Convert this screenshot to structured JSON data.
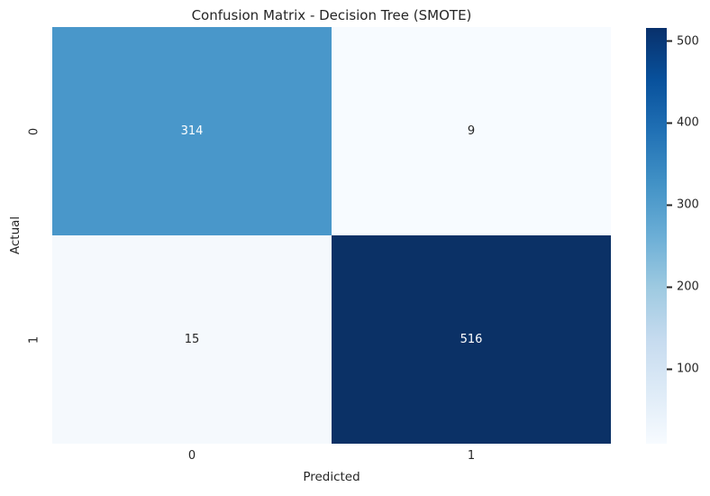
{
  "figure": {
    "background": "#ffffff",
    "text_color": "#262626"
  },
  "chart_data": {
    "type": "heatmap",
    "title": "Confusion Matrix - Decision Tree (SMOTE)",
    "xlabel": "Predicted",
    "ylabel": "Actual",
    "x_tick_labels": [
      "0",
      "1"
    ],
    "y_tick_labels": [
      "0",
      "1"
    ],
    "matrix": [
      [
        314,
        9
      ],
      [
        15,
        516
      ]
    ],
    "vmin": 9,
    "vmax": 516,
    "colorbar_ticks": [
      100,
      200,
      300,
      400,
      500
    ],
    "colormap_name": "Blues",
    "colormap_stops": [
      "#f7fbff",
      "#deebf7",
      "#c6dbef",
      "#9ecae1",
      "#6baed6",
      "#4292c6",
      "#2171b5",
      "#08519c",
      "#08306b"
    ],
    "cell_colors": [
      [
        "#4997ca",
        "#f7fbff"
      ],
      [
        "#f5f9fd",
        "#0b3166"
      ]
    ],
    "cell_text_colors": [
      [
        "#ffffff",
        "#262626"
      ],
      [
        "#262626",
        "#ffffff"
      ]
    ],
    "legend_position": "right-colorbar",
    "grid": "off"
  }
}
